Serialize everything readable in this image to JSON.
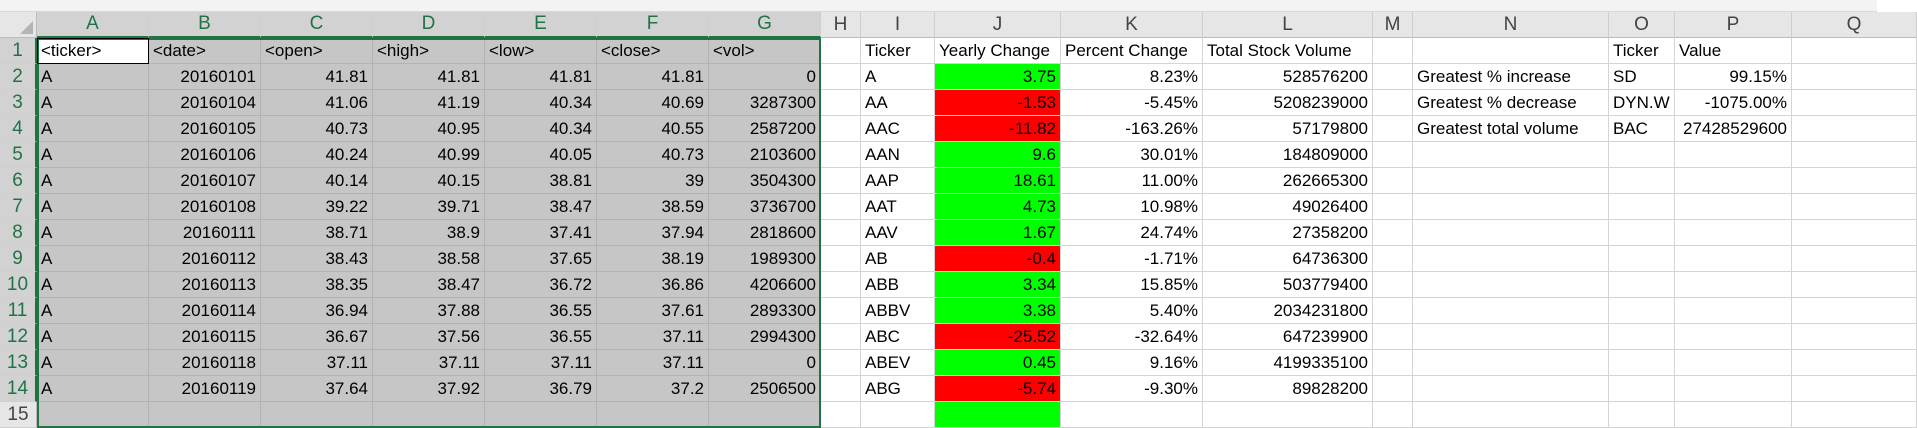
{
  "columns": [
    "A",
    "B",
    "C",
    "D",
    "E",
    "F",
    "G",
    "H",
    "I",
    "J",
    "K",
    "L",
    "M",
    "N",
    "O",
    "P",
    "Q"
  ],
  "rows": [
    "1",
    "2",
    "3",
    "4",
    "5",
    "6",
    "7",
    "8",
    "9",
    "10",
    "11",
    "12",
    "13",
    "14",
    "15"
  ],
  "selected_columns": [
    "A",
    "B",
    "C",
    "D",
    "E",
    "F",
    "G"
  ],
  "colors": {
    "positive_fill": "#00ff00",
    "negative_fill": "#ff0000",
    "selection_accent": "#217346",
    "selection_fill": "#c6c6c6"
  },
  "stock_table": {
    "headers": [
      "<ticker>",
      "<date>",
      "<open>",
      "<high>",
      "<low>",
      "<close>",
      "<vol>"
    ],
    "rows": [
      [
        "A",
        "20160101",
        "41.81",
        "41.81",
        "41.81",
        "41.81",
        "0"
      ],
      [
        "A",
        "20160104",
        "41.06",
        "41.19",
        "40.34",
        "40.69",
        "3287300"
      ],
      [
        "A",
        "20160105",
        "40.73",
        "40.95",
        "40.34",
        "40.55",
        "2587200"
      ],
      [
        "A",
        "20160106",
        "40.24",
        "40.99",
        "40.05",
        "40.73",
        "2103600"
      ],
      [
        "A",
        "20160107",
        "40.14",
        "40.15",
        "38.81",
        "39",
        "3504300"
      ],
      [
        "A",
        "20160108",
        "39.22",
        "39.71",
        "38.47",
        "38.59",
        "3736700"
      ],
      [
        "A",
        "20160111",
        "38.71",
        "38.9",
        "37.41",
        "37.94",
        "2818600"
      ],
      [
        "A",
        "20160112",
        "38.43",
        "38.58",
        "37.65",
        "38.19",
        "1989300"
      ],
      [
        "A",
        "20160113",
        "38.35",
        "38.47",
        "36.72",
        "36.86",
        "4206600"
      ],
      [
        "A",
        "20160114",
        "36.94",
        "37.88",
        "36.55",
        "37.61",
        "2893300"
      ],
      [
        "A",
        "20160115",
        "36.67",
        "37.56",
        "36.55",
        "37.11",
        "2994300"
      ],
      [
        "A",
        "20160118",
        "37.11",
        "37.11",
        "37.11",
        "37.11",
        "0"
      ],
      [
        "A",
        "20160119",
        "37.64",
        "37.92",
        "36.79",
        "37.2",
        "2506500"
      ]
    ]
  },
  "summary_table": {
    "headers": [
      "Ticker",
      "Yearly Change",
      "Percent Change",
      "Total Stock Volume"
    ],
    "rows": [
      {
        "ticker": "A",
        "yearly_change": "3.75",
        "percent_change": "8.23%",
        "volume": "528576200",
        "positive": true
      },
      {
        "ticker": "AA",
        "yearly_change": "-1.53",
        "percent_change": "-5.45%",
        "volume": "5208239000",
        "positive": false
      },
      {
        "ticker": "AAC",
        "yearly_change": "-11.82",
        "percent_change": "-163.26%",
        "volume": "57179800",
        "positive": false
      },
      {
        "ticker": "AAN",
        "yearly_change": "9.6",
        "percent_change": "30.01%",
        "volume": "184809000",
        "positive": true
      },
      {
        "ticker": "AAP",
        "yearly_change": "18.61",
        "percent_change": "11.00%",
        "volume": "262665300",
        "positive": true
      },
      {
        "ticker": "AAT",
        "yearly_change": "4.73",
        "percent_change": "10.98%",
        "volume": "49026400",
        "positive": true
      },
      {
        "ticker": "AAV",
        "yearly_change": "1.67",
        "percent_change": "24.74%",
        "volume": "27358200",
        "positive": true
      },
      {
        "ticker": "AB",
        "yearly_change": "-0.4",
        "percent_change": "-1.71%",
        "volume": "64736300",
        "positive": false
      },
      {
        "ticker": "ABB",
        "yearly_change": "3.34",
        "percent_change": "15.85%",
        "volume": "503779400",
        "positive": true
      },
      {
        "ticker": "ABBV",
        "yearly_change": "3.38",
        "percent_change": "5.40%",
        "volume": "2034231800",
        "positive": true
      },
      {
        "ticker": "ABC",
        "yearly_change": "-25.52",
        "percent_change": "-32.64%",
        "volume": "647239900",
        "positive": false
      },
      {
        "ticker": "ABEV",
        "yearly_change": "0.45",
        "percent_change": "9.16%",
        "volume": "4199335100",
        "positive": true
      },
      {
        "ticker": "ABG",
        "yearly_change": "-5.74",
        "percent_change": "-9.30%",
        "volume": "89828200",
        "positive": false
      },
      {
        "ticker": "",
        "yearly_change": "",
        "percent_change": "",
        "volume": "",
        "positive": true
      }
    ]
  },
  "greatest_table": {
    "headers": [
      "Ticker",
      "Value"
    ],
    "rows": [
      {
        "label": "Greatest % increase",
        "ticker": "SD",
        "value": "99.15%"
      },
      {
        "label": "Greatest % decrease",
        "ticker": "DYN.W",
        "value": "-1075.00%"
      },
      {
        "label": "Greatest total volume",
        "ticker": "BAC",
        "value": "27428529600"
      }
    ]
  }
}
